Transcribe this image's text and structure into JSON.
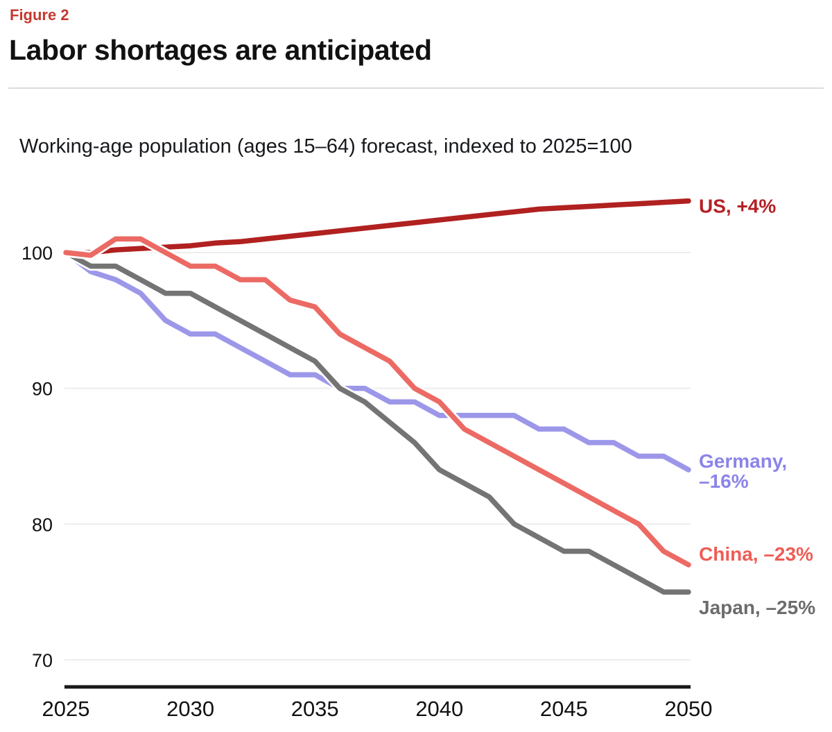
{
  "page": {
    "figure_label": "Figure 2",
    "title": "Labor shortages are anticipated",
    "subtitle": "Working-age population (ages 15–64) forecast, indexed to 2025=100"
  },
  "colors": {
    "figure_label": "#c43a2e",
    "title": "#111111",
    "subtitle": "#16181c",
    "divider": "#dcdcdc",
    "gridline": "#ededed",
    "axis_line": "#181818",
    "tick_label": "#111111",
    "background": "#ffffff",
    "line_casing": "#ffffff"
  },
  "chart_data": {
    "type": "line",
    "title": "Labor shortages are anticipated",
    "subtitle": "Working-age population (ages 15–64) forecast, indexed to 2025=100",
    "xlabel": "",
    "ylabel": "",
    "x": [
      2025,
      2026,
      2027,
      2028,
      2029,
      2030,
      2031,
      2032,
      2033,
      2034,
      2035,
      2036,
      2037,
      2038,
      2039,
      2040,
      2041,
      2042,
      2043,
      2044,
      2045,
      2046,
      2047,
      2048,
      2049,
      2050
    ],
    "x_ticks": [
      2025,
      2030,
      2035,
      2040,
      2045,
      2050
    ],
    "y_ticks": [
      100,
      90,
      80,
      70
    ],
    "xlim": [
      2025,
      2050
    ],
    "ylim": [
      68.5,
      104.8
    ],
    "grid": "horizontal",
    "legend_position": "end-of-line-labels-right",
    "series": [
      {
        "name": "US",
        "end_label_lines": [
          "US, +4%"
        ],
        "color": "#b02120",
        "label_color": "#b42026",
        "values": [
          100,
          100,
          100.2,
          100.3,
          100.4,
          100.5,
          100.7,
          100.8,
          101,
          101.2,
          101.4,
          101.6,
          101.8,
          102,
          102.2,
          102.4,
          102.6,
          102.8,
          103,
          103.2,
          103.3,
          103.4,
          103.5,
          103.6,
          103.7,
          103.8
        ]
      },
      {
        "name": "Germany",
        "end_label_lines": [
          "Germany,",
          "–16%"
        ],
        "color": "#9d97ea",
        "label_color": "#8b84e8",
        "values": [
          100,
          98.6,
          98,
          97,
          95,
          94,
          94,
          93,
          92,
          91,
          91,
          90,
          90,
          89,
          89,
          88,
          88,
          88,
          88,
          87,
          87,
          86,
          86,
          85,
          85,
          84
        ]
      },
      {
        "name": "Japan",
        "end_label_lines": [
          "Japan, –25%"
        ],
        "color": "#747474",
        "label_color": "#6c6c6c",
        "values": [
          100,
          99,
          99,
          98,
          97,
          97,
          96,
          95,
          94,
          93,
          92,
          90,
          89,
          87.5,
          86,
          84,
          83,
          82,
          80,
          79,
          78,
          78,
          77,
          76,
          75,
          75
        ]
      },
      {
        "name": "China",
        "end_label_lines": [
          "China, –23%"
        ],
        "color": "#ec6a64",
        "label_color": "#ef5c55",
        "values": [
          100,
          99.8,
          101,
          101,
          100,
          99,
          99,
          98,
          98,
          96.5,
          96,
          94,
          93,
          92,
          90,
          89,
          87,
          86,
          85,
          84,
          83,
          82,
          81,
          80,
          78,
          77
        ]
      }
    ]
  }
}
